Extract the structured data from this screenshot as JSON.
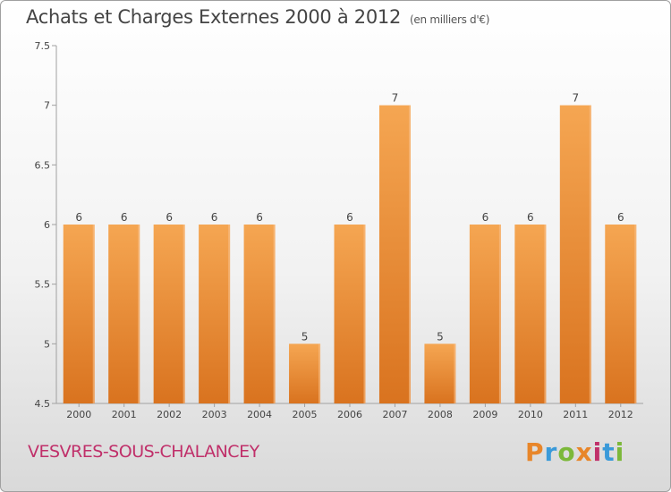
{
  "header": {
    "title": "Achats et Charges Externes 2000 à 2012",
    "subtitle": "(en milliers d'€)"
  },
  "footer": {
    "commune": "VESVRES-SOUS-CHALANCEY",
    "logo": "Proxiti",
    "logo_colors": [
      "#e8862a",
      "#3a9ad9",
      "#7cb83a",
      "#e8862a",
      "#c0306a",
      "#3a9ad9",
      "#7cb83a"
    ]
  },
  "colors": {
    "bar_light": "#f5a652",
    "bar_dark": "#d9731f",
    "axis": "#a0a0a0",
    "grid": "#c8c8c8"
  },
  "chart_data": {
    "type": "bar",
    "title": "Achats et Charges Externes 2000 à 2012",
    "subtitle": "(en milliers d'€)",
    "categories": [
      "2000",
      "2001",
      "2002",
      "2003",
      "2004",
      "2005",
      "2006",
      "2007",
      "2008",
      "2009",
      "2010",
      "2011",
      "2012"
    ],
    "values": [
      6,
      6,
      6,
      6,
      6,
      5,
      6,
      7,
      5,
      6,
      6,
      7,
      6
    ],
    "ylim": [
      4.5,
      7.5
    ],
    "yticks": [
      "4.5",
      "5",
      "5.5",
      "6",
      "6.5",
      "7",
      "7.5"
    ],
    "grid": false
  }
}
